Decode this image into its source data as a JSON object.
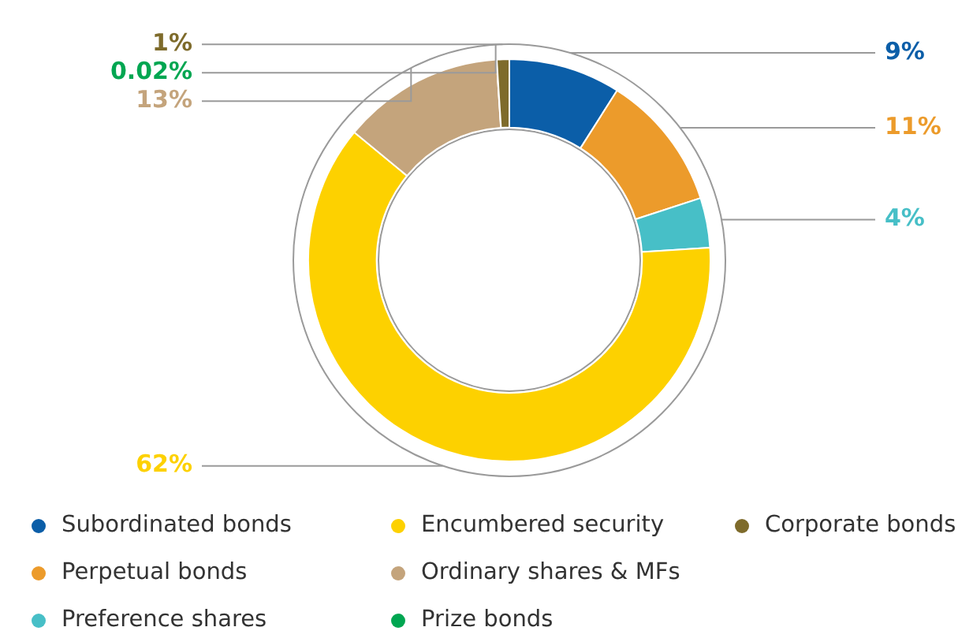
{
  "chart_data": {
    "type": "donut",
    "categories": [
      "Subordinated bonds",
      "Perpetual bonds",
      "Preference shares",
      "Encumbered security",
      "Ordinary shares & MFs",
      "Prize bonds",
      "Corporate bonds"
    ],
    "values": [
      9,
      11,
      4,
      62,
      13,
      0.02,
      1
    ],
    "colors": [
      "#0b5ea8",
      "#ec9b2b",
      "#47bfc7",
      "#fdd100",
      "#c4a47c",
      "#00a651",
      "#7e6b2b"
    ],
    "value_labels": [
      "9%",
      "11%",
      "4%",
      "62%",
      "13%",
      "0.02%",
      "1%"
    ],
    "legend": "bottom"
  }
}
